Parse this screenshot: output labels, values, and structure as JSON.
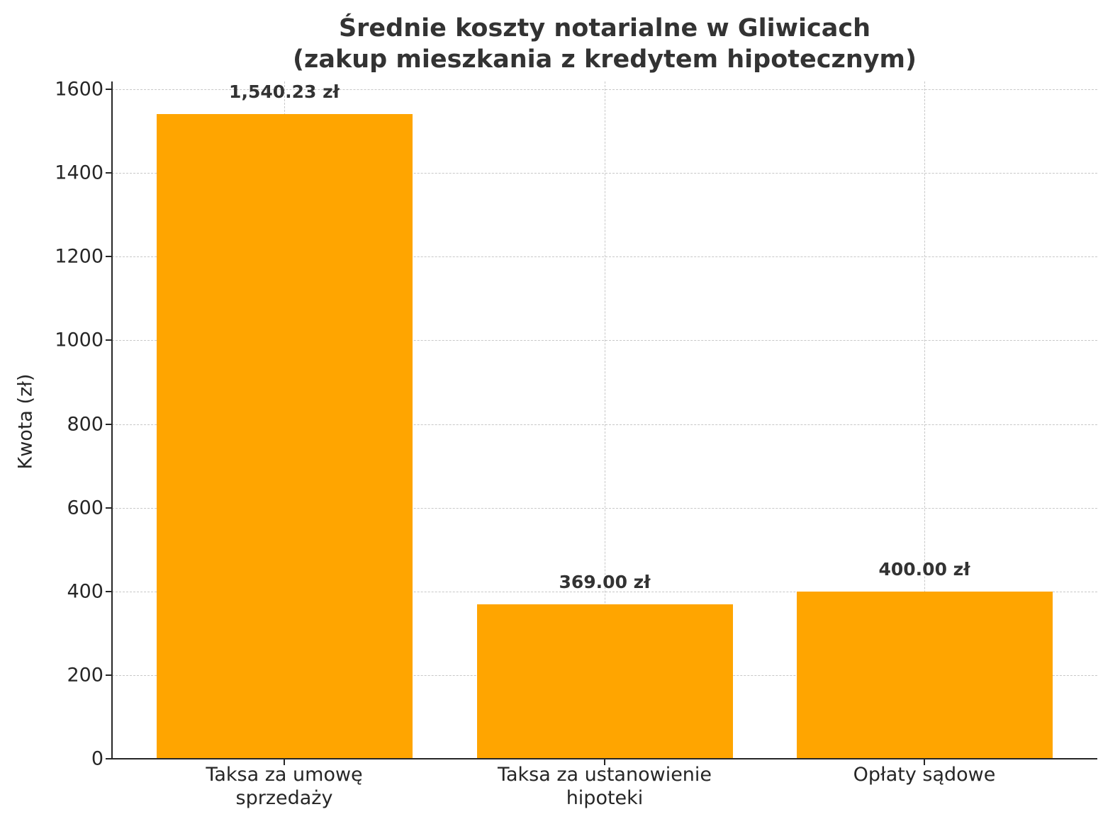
{
  "chart_data": {
    "type": "bar",
    "title": "Średnie koszty notarialne w Gliwicach\n(zakup mieszkania z kredytem hipotecznym)",
    "title_lines": [
      "Średnie koszty notarialne w Gliwicach",
      "(zakup mieszkania z kredytem hipotecznym)"
    ],
    "categories": [
      "Taksa za umowę\nsprzedaży",
      "Taksa za ustanowienie\nhipoteki",
      "Opłaty sądowe"
    ],
    "values": [
      1540.23,
      369.0,
      400.0
    ],
    "data_labels": [
      "1,540.23 zł",
      "369.00 zł",
      "400.00 zł"
    ],
    "xlabel": "",
    "ylabel": "Kwota (zł)",
    "ylim": [
      0,
      1617
    ],
    "yticks": [
      0,
      200,
      400,
      600,
      800,
      1000,
      1200,
      1400,
      1600
    ],
    "grid": true,
    "grid_style": "dashed",
    "legend": null,
    "bar_color": "#ffa500"
  },
  "ui": {
    "title_line1": "Średnie koszty notarialne w Gliwicach",
    "title_line2": "(zakup mieszkania z kredytem hipotecznym)",
    "ylabel": "Kwota (zł)",
    "yticks": [
      "0",
      "200",
      "400",
      "600",
      "800",
      "1000",
      "1200",
      "1400",
      "1600"
    ],
    "bars": [
      {
        "label": "Taksa za umowę\nsprzedaży",
        "value_label": "1,540.23 zł"
      },
      {
        "label": "Taksa za ustanowienie\nhipoteki",
        "value_label": "369.00 zł"
      },
      {
        "label": "Opłaty sądowe",
        "value_label": "400.00 zł"
      }
    ]
  }
}
